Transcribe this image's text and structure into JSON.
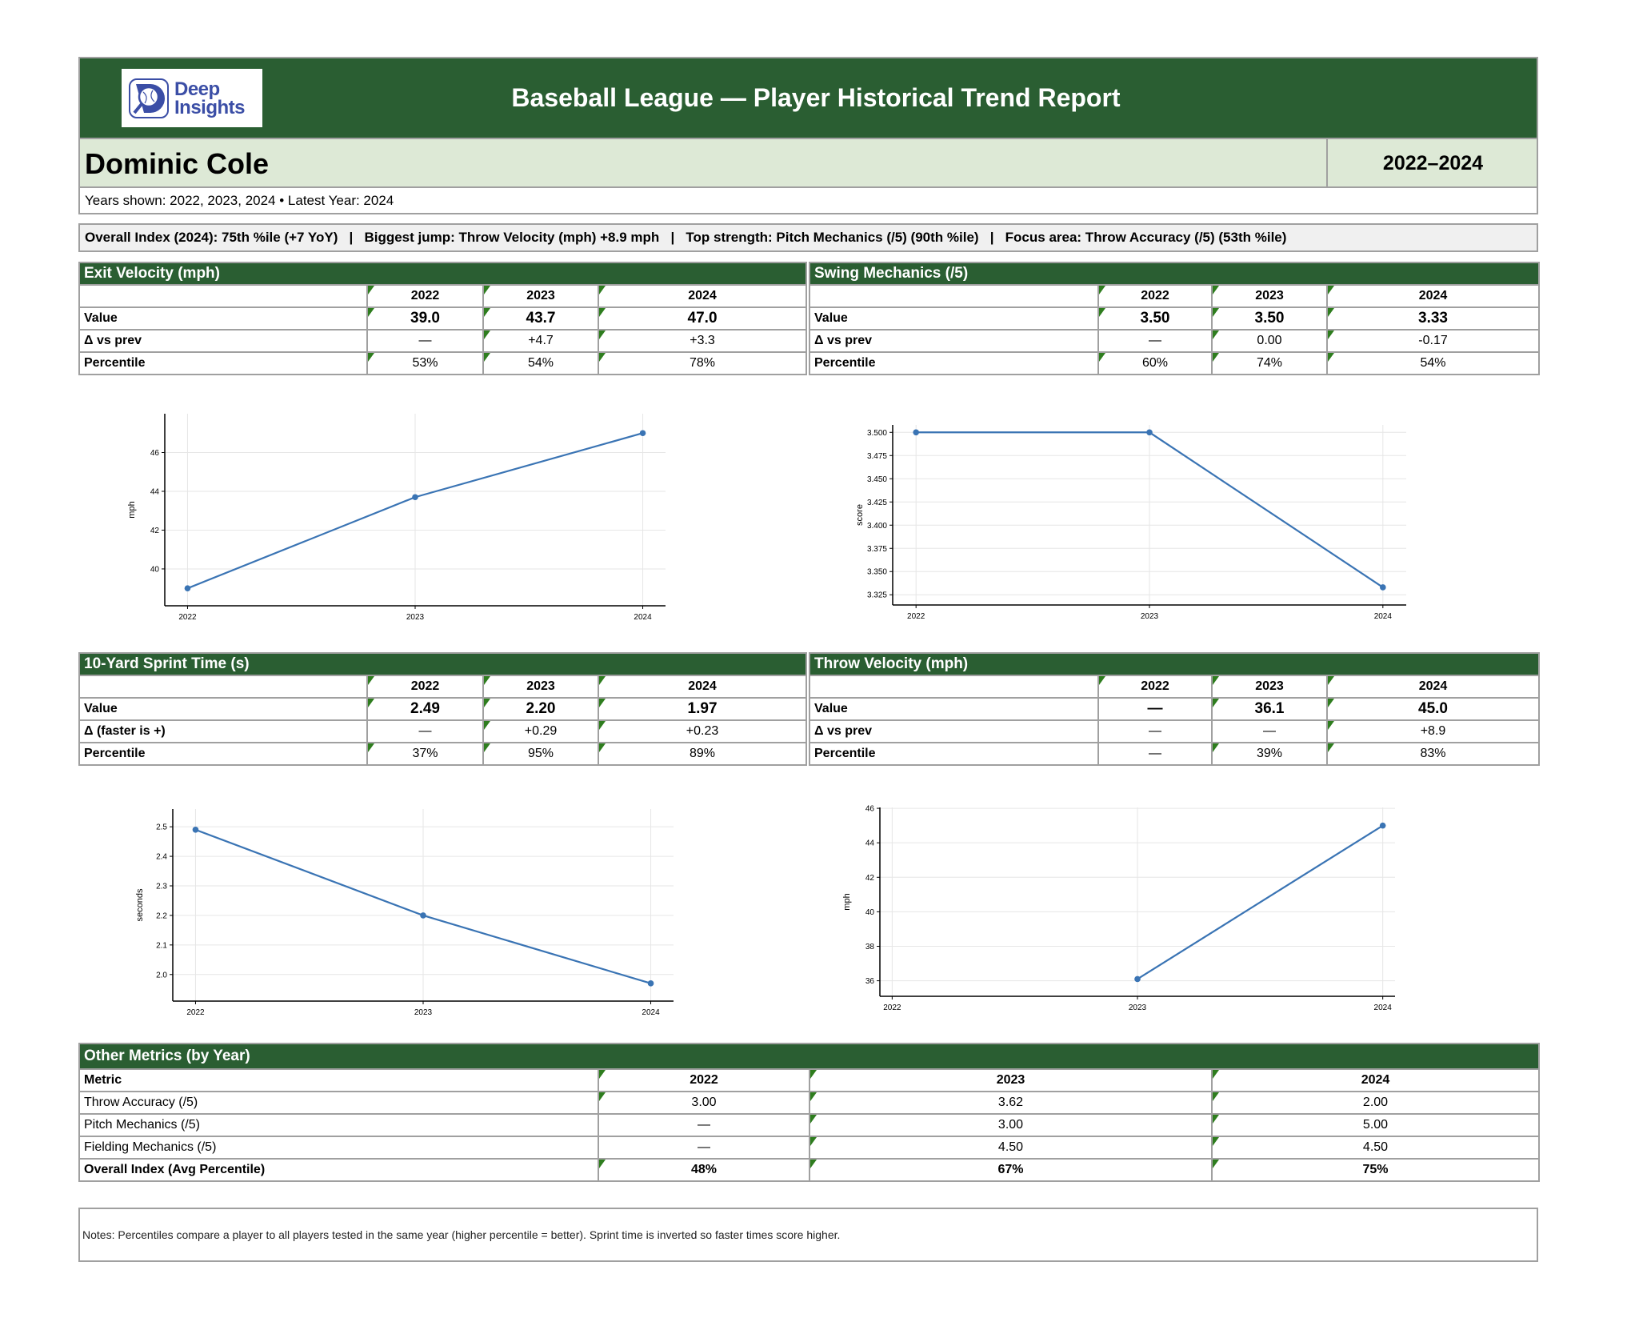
{
  "header": {
    "logo_text": [
      "Deep",
      "Insights"
    ],
    "title": "Baseball League — Player Historical Trend Report"
  },
  "player": {
    "name": "Dominic Cole",
    "range": "2022–2024",
    "years_line": "Years shown: 2022, 2023, 2024  •  Latest Year: 2024"
  },
  "summary": "Overall Index (2024): 75th %ile (+7 YoY)   |   Biggest jump: Throw Velocity (mph) +8.9 mph   |   Top strength: Pitch Mechanics (/5) (90th %ile)   |   Focus area: Throw Accuracy (/5) (53th %ile)",
  "colors": {
    "header_green": "#2a5e32",
    "name_band": "#dde9d6",
    "line": "#3a74b4",
    "marker": "#2e7d1e"
  },
  "metric_tables": [
    {
      "title": "Exit Velocity (mph)",
      "years": [
        "2022",
        "2023",
        "2024"
      ],
      "rows": [
        {
          "label": "Value",
          "cells": [
            "39.0",
            "43.7",
            "47.0"
          ]
        },
        {
          "label": "Δ vs prev",
          "cells": [
            "—",
            "+4.7",
            "+3.3"
          ]
        },
        {
          "label": "Percentile",
          "cells": [
            "53%",
            "54%",
            "78%"
          ]
        }
      ]
    },
    {
      "title": "Swing Mechanics (/5)",
      "years": [
        "2022",
        "2023",
        "2024"
      ],
      "rows": [
        {
          "label": "Value",
          "cells": [
            "3.50",
            "3.50",
            "3.33"
          ]
        },
        {
          "label": "Δ vs prev",
          "cells": [
            "—",
            "0.00",
            "-0.17"
          ]
        },
        {
          "label": "Percentile",
          "cells": [
            "60%",
            "74%",
            "54%"
          ]
        }
      ]
    },
    {
      "title": "10-Yard Sprint Time (s)",
      "years": [
        "2022",
        "2023",
        "2024"
      ],
      "rows": [
        {
          "label": "Value",
          "cells": [
            "2.49",
            "2.20",
            "1.97"
          ]
        },
        {
          "label": "Δ (faster is +)",
          "cells": [
            "—",
            "+0.29",
            "+0.23"
          ]
        },
        {
          "label": "Percentile",
          "cells": [
            "37%",
            "95%",
            "89%"
          ]
        }
      ]
    },
    {
      "title": "Throw Velocity (mph)",
      "years": [
        "2022",
        "2023",
        "2024"
      ],
      "rows": [
        {
          "label": "Value",
          "cells": [
            "—",
            "36.1",
            "45.0"
          ]
        },
        {
          "label": "Δ vs prev",
          "cells": [
            "—",
            "—",
            "+8.9"
          ]
        },
        {
          "label": "Percentile",
          "cells": [
            "—",
            "39%",
            "83%"
          ]
        }
      ]
    }
  ],
  "chart_data": [
    {
      "type": "line",
      "x": [
        2022,
        2023,
        2024
      ],
      "y": [
        39.0,
        43.7,
        47.0
      ],
      "ylabel": "mph",
      "xticks": [
        "2022",
        "2023",
        "2024"
      ],
      "yticks": [
        40,
        42,
        44,
        46
      ],
      "ytick_labels": [
        "40",
        "42",
        "44",
        "46"
      ],
      "ylim": [
        38.1,
        48.0
      ],
      "xlim": [
        2021.9,
        2024.1
      ],
      "grid": true
    },
    {
      "type": "line",
      "x": [
        2022,
        2023,
        2024
      ],
      "y": [
        3.5,
        3.5,
        3.333
      ],
      "ylabel": "score",
      "xticks": [
        "2022",
        "2023",
        "2024"
      ],
      "yticks": [
        3.325,
        3.35,
        3.375,
        3.4,
        3.425,
        3.45,
        3.475,
        3.5
      ],
      "ytick_labels": [
        "3.325",
        "3.350",
        "3.375",
        "3.400",
        "3.425",
        "3.450",
        "3.475",
        "3.500"
      ],
      "ylim": [
        3.314,
        3.508
      ],
      "xlim": [
        2021.9,
        2024.1
      ],
      "grid": true
    },
    {
      "type": "line",
      "x": [
        2022,
        2023,
        2024
      ],
      "y": [
        2.49,
        2.2,
        1.97
      ],
      "ylabel": "seconds",
      "xticks": [
        "2022",
        "2023",
        "2024"
      ],
      "yticks": [
        2.0,
        2.1,
        2.2,
        2.3,
        2.4,
        2.5
      ],
      "ytick_labels": [
        "2.0",
        "2.1",
        "2.2",
        "2.3",
        "2.4",
        "2.5"
      ],
      "ylim": [
        1.91,
        2.56
      ],
      "xlim": [
        2021.9,
        2024.1
      ],
      "grid": true
    },
    {
      "type": "line",
      "x": [
        2023,
        2024
      ],
      "y": [
        36.1,
        45.0
      ],
      "ylabel": "mph",
      "xticks": [
        "2022",
        "2023",
        "2024"
      ],
      "yticks": [
        36,
        38,
        40,
        42,
        44,
        46
      ],
      "ytick_labels": [
        "36",
        "38",
        "40",
        "42",
        "44",
        "46"
      ],
      "ylim": [
        35.1,
        46.05
      ],
      "xlim": [
        2021.95,
        2024.05
      ],
      "grid": true
    }
  ],
  "other_metrics": {
    "title": "Other Metrics (by Year)",
    "header": [
      "Metric",
      "2022",
      "2023",
      "2024"
    ],
    "rows": [
      {
        "label": "Throw Accuracy (/5)",
        "cells": [
          "3.00",
          "3.62",
          "2.00"
        ],
        "bold": false
      },
      {
        "label": "Pitch Mechanics (/5)",
        "cells": [
          "—",
          "3.00",
          "5.00"
        ],
        "bold": false
      },
      {
        "label": "Fielding Mechanics (/5)",
        "cells": [
          "—",
          "4.50",
          "4.50"
        ],
        "bold": false
      },
      {
        "label": "Overall Index (Avg Percentile)",
        "cells": [
          "48%",
          "67%",
          "75%"
        ],
        "bold": true
      }
    ]
  },
  "notes": "Notes: Percentiles compare a player to all players tested in the same year (higher percentile = better). Sprint time is inverted so faster times score higher."
}
